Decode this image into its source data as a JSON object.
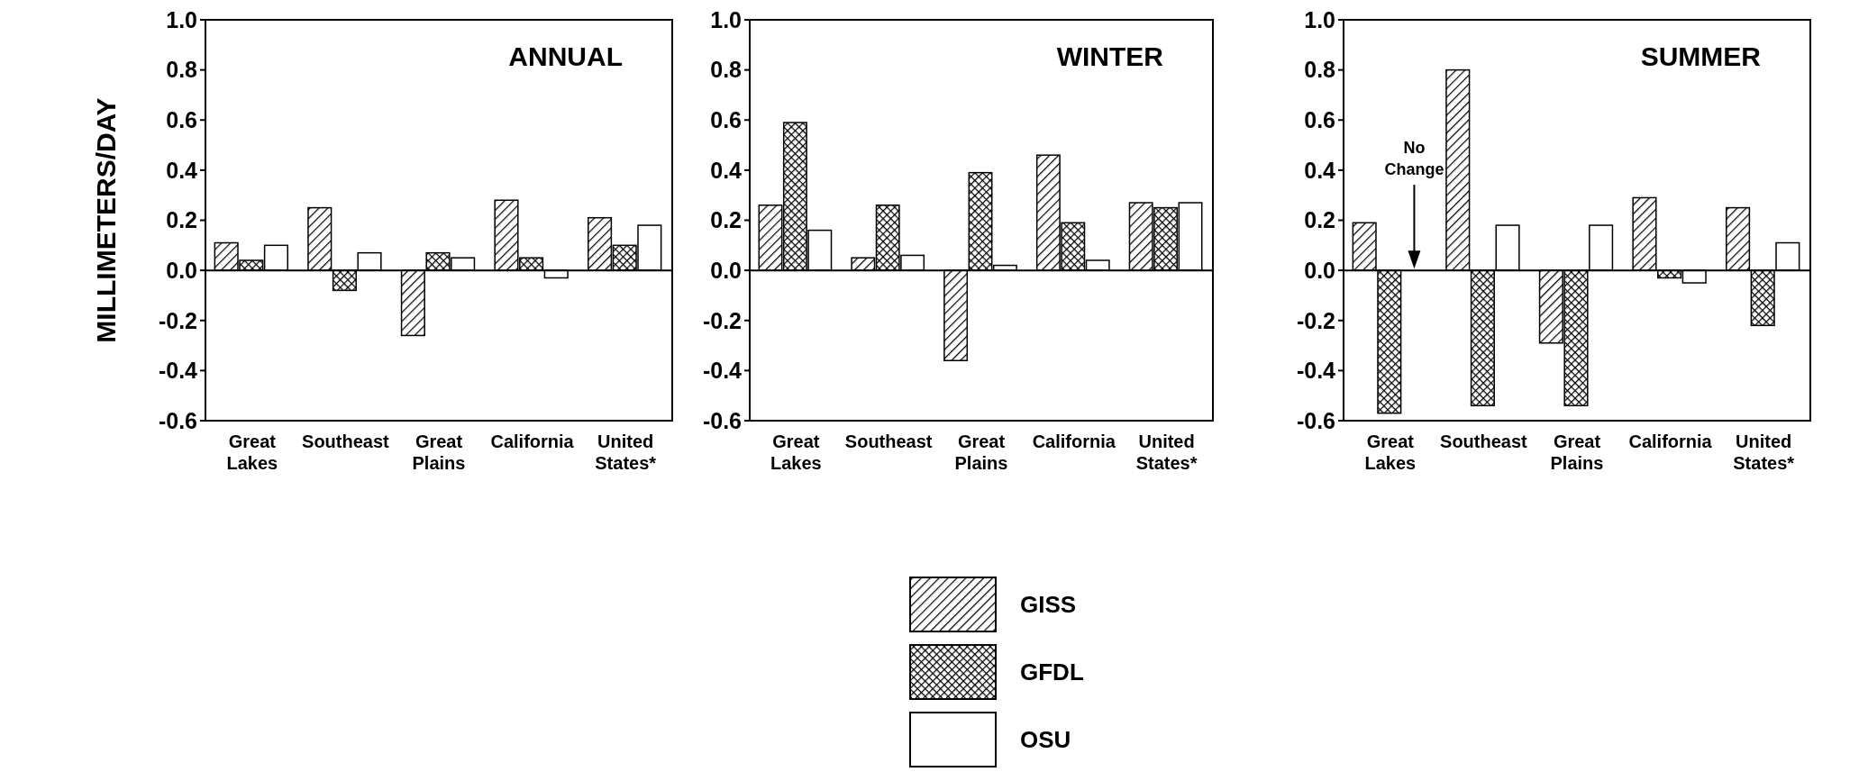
{
  "chart_data": [
    {
      "type": "bar",
      "title": "ANNUAL",
      "ylabel": "MILLIMETERS/DAY",
      "categories": [
        "Great Lakes",
        "Southeast",
        "Great Plains",
        "California",
        "United States*"
      ],
      "ylim": [
        -0.6,
        1.0
      ],
      "yticks": [
        {
          "value": -0.6,
          "label": "-0.6"
        },
        {
          "value": -0.4,
          "label": "-0.4"
        },
        {
          "value": -0.2,
          "label": "-0.2"
        },
        {
          "value": 0,
          "label": "0.0"
        },
        {
          "value": 0.2,
          "label": "0.2"
        },
        {
          "value": 0.4,
          "label": "0.4"
        },
        {
          "value": 0.6,
          "label": "0.6"
        },
        {
          "value": 0.8,
          "label": "0.8"
        },
        {
          "value": 1.0,
          "label": "1.0"
        }
      ],
      "legend": "bottom",
      "series": [
        {
          "name": "GISS",
          "color": "#000000",
          "values": [
            0.11,
            0.25,
            -0.26,
            0.28,
            0.21
          ]
        },
        {
          "name": "GFDL",
          "color": "#000000",
          "values": [
            0.04,
            -0.08,
            0.07,
            0.05,
            0.1
          ]
        },
        {
          "name": "OSU",
          "color": "#ffffff",
          "values": [
            0.1,
            0.07,
            0.05,
            -0.03,
            0.18
          ]
        }
      ]
    },
    {
      "type": "bar",
      "title": "WINTER",
      "categories": [
        "Great Lakes",
        "Southeast",
        "Great Plains",
        "California",
        "United States*"
      ],
      "ylim": [
        -0.6,
        1.0
      ],
      "yticks": [
        {
          "value": -0.6,
          "label": "-0.6"
        },
        {
          "value": -0.4,
          "label": "-0.4"
        },
        {
          "value": -0.2,
          "label": "-0.2"
        },
        {
          "value": 0,
          "label": "0.0"
        },
        {
          "value": 0.2,
          "label": "0.2"
        },
        {
          "value": 0.4,
          "label": "0.4"
        },
        {
          "value": 0.6,
          "label": "0.6"
        },
        {
          "value": 0.8,
          "label": "0.8"
        },
        {
          "value": 1.0,
          "label": "1.0"
        }
      ],
      "series": [
        {
          "color": "#000000",
          "values": [
            0.26,
            0.05,
            -0.36,
            0.46,
            0.27
          ]
        },
        {
          "color": "#000000",
          "values": [
            0.59,
            0.26,
            0.39,
            0.19,
            0.25
          ]
        },
        {
          "color": "#ffffff",
          "values": [
            0.16,
            0.06,
            0.02,
            0.04,
            0.27
          ]
        }
      ]
    },
    {
      "type": "bar",
      "title": "SUMMER",
      "categories": [
        "Great Lakes",
        "Southeast",
        "Great Plains",
        "California",
        "United States*"
      ],
      "ylim": [
        -0.6,
        1.0
      ],
      "yticks": [
        {
          "value": -0.6,
          "label": "-0.6"
        },
        {
          "value": -0.4,
          "label": "-0.4"
        },
        {
          "value": -0.2,
          "label": "-0.2"
        },
        {
          "value": 0,
          "label": "0.0"
        },
        {
          "value": 0.2,
          "label": "0.2"
        },
        {
          "value": 0.4,
          "label": "0.4"
        },
        {
          "value": 0.6,
          "label": "0.6"
        },
        {
          "value": 0.8,
          "label": "0.8"
        },
        {
          "value": 1.0,
          "label": "1.0"
        }
      ],
      "annotations": [
        "No Change"
      ],
      "series": [
        {
          "color": "#000000",
          "values": [
            0.19,
            0.8,
            -0.29,
            0.29,
            0.25
          ]
        },
        {
          "color": "#000000",
          "values": [
            -0.57,
            -0.54,
            -0.54,
            -0.03,
            -0.22
          ]
        },
        {
          "color": "#ffffff",
          "values": [
            0,
            0.18,
            0.18,
            -0.05,
            0.11
          ]
        }
      ]
    }
  ]
}
